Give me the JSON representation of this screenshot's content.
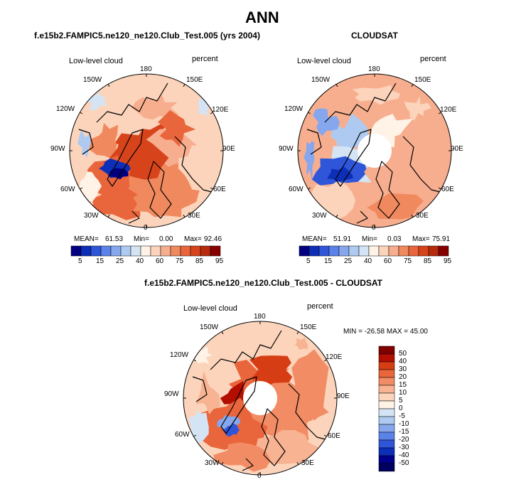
{
  "figure_title": "ANN",
  "chart_data": [
    {
      "type": "heatmap",
      "subtitle": "f.e15b2.FAMPIC5.ne120_ne120.Club_Test.005 (yrs 2004)",
      "left_label": "Low-level cloud",
      "right_label": "percent",
      "projection": "polar stereographic, north pole",
      "longitude_labels": [
        "180",
        "150E",
        "120E",
        "90E",
        "60E",
        "30E",
        "0",
        "30W",
        "60W",
        "90W",
        "120W",
        "150W"
      ],
      "stats": {
        "mean_label": "MEAN=",
        "mean": "61.53",
        "min_label": "Min=",
        "min": "0.00",
        "max_label": "Max=",
        "max": "92.46"
      },
      "colorbar_levels": [
        "5",
        "15",
        "25",
        "40",
        "60",
        "75",
        "85",
        "95"
      ]
    },
    {
      "type": "heatmap",
      "subtitle": "CLOUDSAT",
      "left_label": "Low-level cloud",
      "right_label": "percent",
      "projection": "polar stereographic, north pole",
      "longitude_labels": [
        "180",
        "150E",
        "120E",
        "90E",
        "60E",
        "30E",
        "0",
        "30W",
        "60W",
        "90W",
        "120W",
        "150W"
      ],
      "stats": {
        "mean_label": "MEAN=",
        "mean": "51.91",
        "min_label": "Min=",
        "min": "0.03",
        "max_label": "Max=",
        "max": "75.91"
      },
      "colorbar_levels": [
        "5",
        "15",
        "25",
        "40",
        "60",
        "75",
        "85",
        "95"
      ]
    },
    {
      "type": "heatmap",
      "subtitle": "f.e15b2.FAMPIC5.ne120_ne120.Club_Test.005 - CLOUDSAT",
      "left_label": "Low-level cloud",
      "right_label": "percent",
      "projection": "polar stereographic, north pole",
      "longitude_labels": [
        "180",
        "150E",
        "120E",
        "90E",
        "60E",
        "30E",
        "0",
        "30W",
        "60W",
        "90W",
        "120W",
        "150W"
      ],
      "stats_text": "MIN = -26.58 MAX =  45.00",
      "colorbar_levels": [
        "50",
        "40",
        "30",
        "20",
        "15",
        "10",
        "5",
        "0",
        "-5",
        "-10",
        "-15",
        "-20",
        "-30",
        "-40",
        "-50"
      ]
    }
  ],
  "palette_abs": [
    "#000080",
    "#0d2fb8",
    "#2f55d8",
    "#5a82e8",
    "#86a7ee",
    "#aecaf0",
    "#d4e4f4",
    "#fff2e6",
    "#fbd4bb",
    "#f7ae8f",
    "#f1895f",
    "#e9653b",
    "#d7441b",
    "#b52b0c",
    "#870000"
  ],
  "palette_diff": [
    "#800000",
    "#b30e00",
    "#d63d14",
    "#e9653b",
    "#f28c64",
    "#f7b392",
    "#fbd4bb",
    "#fff2e6",
    "#d4e4f4",
    "#aecaf0",
    "#86a7ee",
    "#5a82e8",
    "#2f55d8",
    "#0d2fb8",
    "#00008a",
    "#000060"
  ]
}
